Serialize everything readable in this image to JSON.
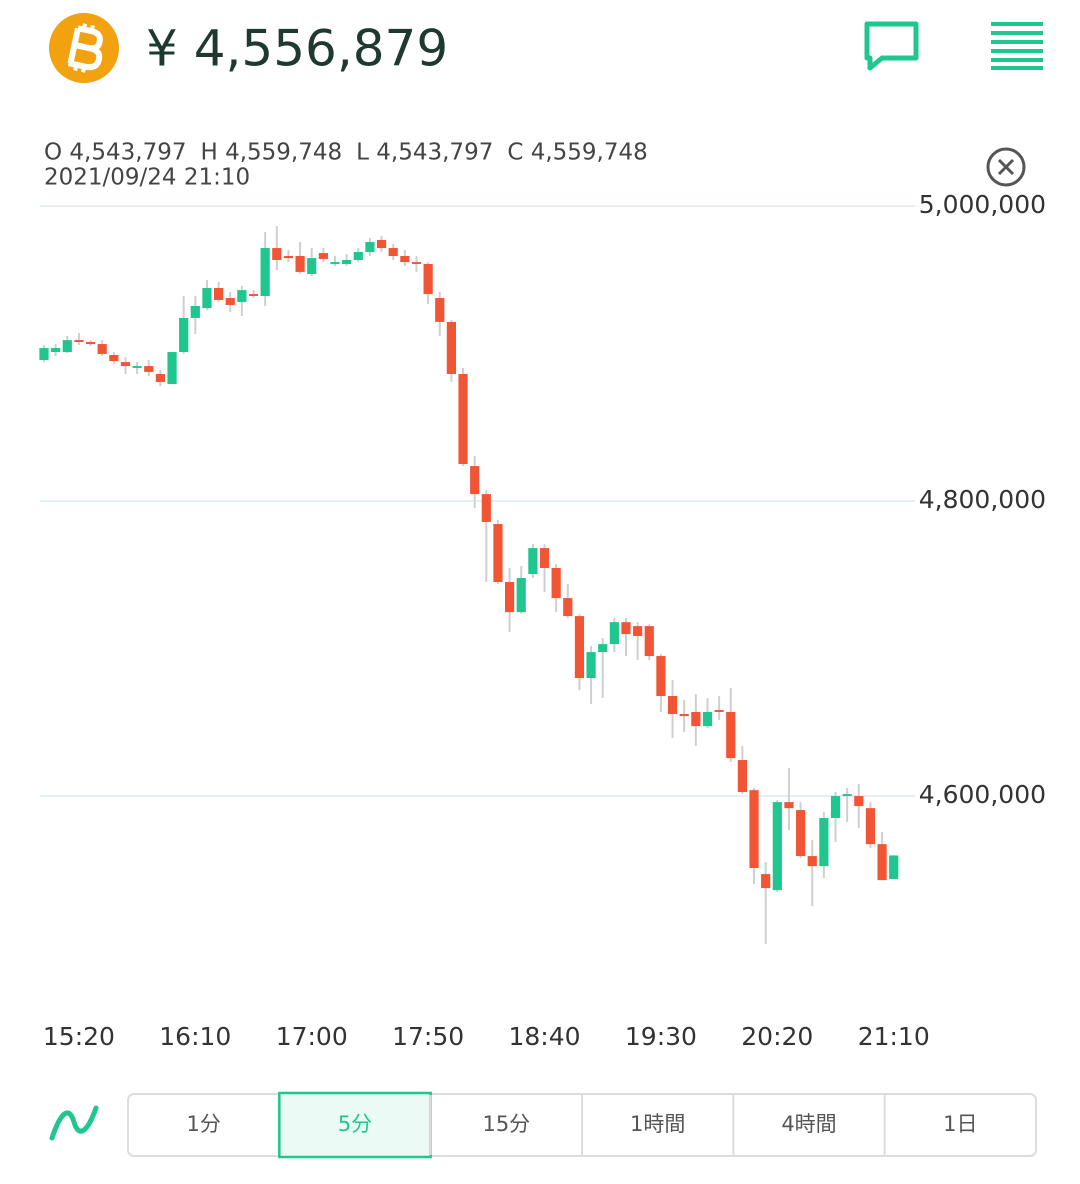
{
  "header": {
    "price": "¥ 4,556,879"
  },
  "info": {
    "ohlc": [
      "O 4,543,797",
      "H 4,559,748",
      "L 4,543,797",
      "C 4,559,748"
    ],
    "datetime": "2021/09/24 21:10"
  },
  "chart_data": {
    "type": "candlestick",
    "categories": [
      null,
      null,
      null,
      "15:20",
      null,
      null,
      null,
      null,
      null,
      null,
      null,
      null,
      null,
      "16:10",
      null,
      null,
      null,
      null,
      null,
      null,
      null,
      null,
      null,
      "17:00",
      null,
      null,
      null,
      null,
      null,
      null,
      null,
      null,
      null,
      "17:50",
      null,
      null,
      null,
      null,
      null,
      null,
      null,
      null,
      null,
      "18:40",
      null,
      null,
      null,
      null,
      null,
      null,
      null,
      null,
      null,
      "19:30",
      null,
      null,
      null,
      null,
      null,
      null,
      null,
      null,
      null,
      "20:20",
      null,
      null,
      null,
      null,
      null,
      null,
      null,
      null,
      null,
      "21:10"
    ],
    "open": [
      4895600,
      4901000,
      4901000,
      4909100,
      4907800,
      4906400,
      4899000,
      4894200,
      4890200,
      4891500,
      4886100,
      4879300,
      4901000,
      4924100,
      4930800,
      4944400,
      4937600,
      4934900,
      4940300,
      4939000,
      4971500,
      4966100,
      4966100,
      4953900,
      4968100,
      4960700,
      4960700,
      4963400,
      4968800,
      4977000,
      4971500,
      4966100,
      4962000,
      4960700,
      4937600,
      4921400,
      4886100,
      4823700,
      4804700,
      4784400,
      4745100,
      4724700,
      4750500,
      4768100,
      4754600,
      4734200,
      4722000,
      4680000,
      4697600,
      4703000,
      4717900,
      4715200,
      4715200,
      4694900,
      4667800,
      4655600,
      4657000,
      4647400,
      4658300,
      4657000,
      4624400,
      4604000,
      4547100,
      4536200,
      4595900,
      4590500,
      4559300,
      4552500,
      4585100,
      4600000,
      4600000,
      4591800,
      4567400,
      4543797
    ],
    "high": [
      4905800,
      4906400,
      4911900,
      4913900,
      4909100,
      4909100,
      4901000,
      4897600,
      4894200,
      4895600,
      4888800,
      4901000,
      4939000,
      4939000,
      4949800,
      4948500,
      4941700,
      4945800,
      4943000,
      4982400,
      4986400,
      4970200,
      4975600,
      4971500,
      4971500,
      4966100,
      4967500,
      4971500,
      4978300,
      4979700,
      4974200,
      4970200,
      4966100,
      4962000,
      4941700,
      4922700,
      4890200,
      4830500,
      4807400,
      4787100,
      4754600,
      4755900,
      4770800,
      4770800,
      4757300,
      4743700,
      4723400,
      4701700,
      4707100,
      4720700,
      4720700,
      4717900,
      4716500,
      4696300,
      4678600,
      4665100,
      4669100,
      4666400,
      4667800,
      4673200,
      4633900,
      4605400,
      4555200,
      4597300,
      4619000,
      4595900,
      4570100,
      4589100,
      4602700,
      4605400,
      4608100,
      4595900,
      4575600,
      4559748
    ],
    "low": [
      4894200,
      4898300,
      4900300,
      4905800,
      4905100,
      4898300,
      4892900,
      4886100,
      4886100,
      4884700,
      4878000,
      4879300,
      4899700,
      4913200,
      4929500,
      4934900,
      4928100,
      4925400,
      4937600,
      4932200,
      4956600,
      4962000,
      4953900,
      4952500,
      4962000,
      4959300,
      4959300,
      4962000,
      4966100,
      4968800,
      4963400,
      4959300,
      4955300,
      4933600,
      4911900,
      4880700,
      4823700,
      4795200,
      4745100,
      4743700,
      4711200,
      4723400,
      4747800,
      4738300,
      4724700,
      4720700,
      4671800,
      4662400,
      4666400,
      4697600,
      4694900,
      4692200,
      4692200,
      4657000,
      4639300,
      4643400,
      4633900,
      4646100,
      4651600,
      4623000,
      4601300,
      4540300,
      4499600,
      4534900,
      4576900,
      4558000,
      4525400,
      4544400,
      4568800,
      4582400,
      4578300,
      4564700,
      4543000,
      4543797
    ],
    "close": [
      4903700,
      4903700,
      4909100,
      4907800,
      4906400,
      4899700,
      4894900,
      4891500,
      4891500,
      4887500,
      4880700,
      4901000,
      4924100,
      4932200,
      4944400,
      4936300,
      4932900,
      4943000,
      4939000,
      4971500,
      4963400,
      4964700,
      4955300,
      4964700,
      4964100,
      4962000,
      4963400,
      4968800,
      4975600,
      4971500,
      4966100,
      4962000,
      4960700,
      4940300,
      4921400,
      4886100,
      4825100,
      4804700,
      4785800,
      4745100,
      4724700,
      4747800,
      4768100,
      4754600,
      4734200,
      4722000,
      4680000,
      4697600,
      4703000,
      4717900,
      4709800,
      4708500,
      4694900,
      4667800,
      4655600,
      4654200,
      4647400,
      4657000,
      4657000,
      4625700,
      4602700,
      4551200,
      4537600,
      4595900,
      4591800,
      4559300,
      4552500,
      4585100,
      4600000,
      4601300,
      4593200,
      4567400,
      4543000,
      4559748
    ],
    "up_color": "#1fc690",
    "down_color": "#f25535",
    "ylim": [
      4462000,
      5010000
    ],
    "yticks": [
      {
        "value": 4600000,
        "label": "4,600,000"
      },
      {
        "value": 4800000,
        "label": "4,800,000"
      },
      {
        "value": 5000000,
        "label": "5,000,000"
      }
    ],
    "grid": true
  },
  "timeframes": [
    "1分",
    "5分",
    "15分",
    "1時間",
    "4時間",
    "1日"
  ],
  "selected_timeframe": 1
}
